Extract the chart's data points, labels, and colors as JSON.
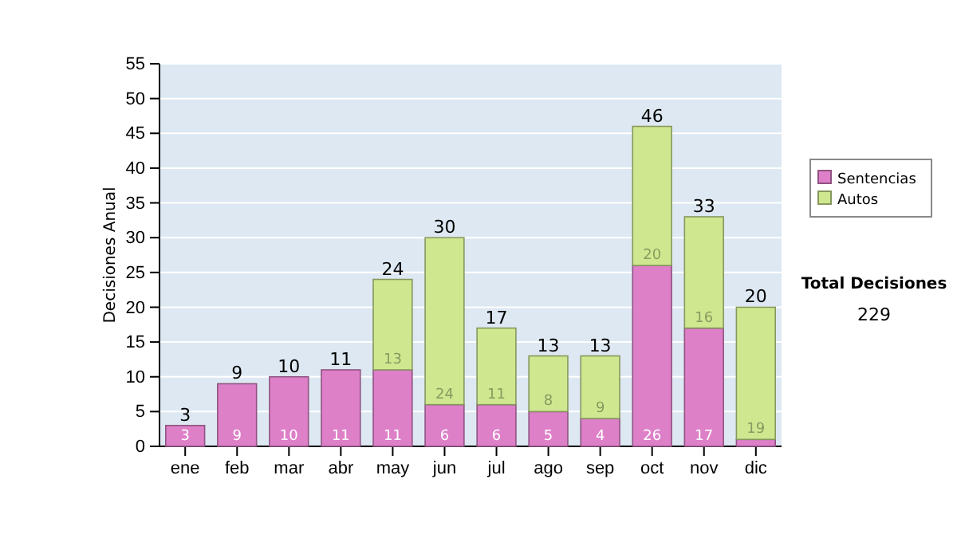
{
  "chart_data": {
    "type": "bar",
    "stacked": true,
    "ylabel": "Decisiones Anual",
    "categories": [
      "ene",
      "feb",
      "mar",
      "abr",
      "may",
      "jun",
      "jul",
      "ago",
      "sep",
      "oct",
      "nov",
      "dic"
    ],
    "series": [
      {
        "name": "Sentencias",
        "color": "#dd80c8",
        "values": [
          3,
          9,
          10,
          11,
          11,
          6,
          6,
          5,
          4,
          26,
          17,
          1
        ],
        "value_labels": [
          "3",
          "9",
          "10",
          "11",
          "11",
          "6",
          "6",
          "5",
          "4",
          "26",
          "17",
          null
        ]
      },
      {
        "name": "Autos",
        "color": "#cfe890",
        "values": [
          0,
          0,
          0,
          0,
          13,
          24,
          11,
          8,
          9,
          20,
          16,
          19
        ],
        "value_labels": [
          null,
          null,
          null,
          null,
          "13",
          "24",
          "11",
          "8",
          "9",
          "20",
          "16",
          "19"
        ]
      }
    ],
    "totals": [
      "3",
      "9",
      "10",
      "11",
      "24",
      "30",
      "17",
      "13",
      "13",
      "46",
      "33",
      "20"
    ],
    "ylim": [
      0,
      55
    ],
    "yticks": [
      0,
      5,
      10,
      15,
      20,
      25,
      30,
      35,
      40,
      45,
      50,
      55
    ],
    "grid": "y",
    "legend": "right",
    "annotations": [
      "Total Decisiones",
      "229"
    ]
  }
}
